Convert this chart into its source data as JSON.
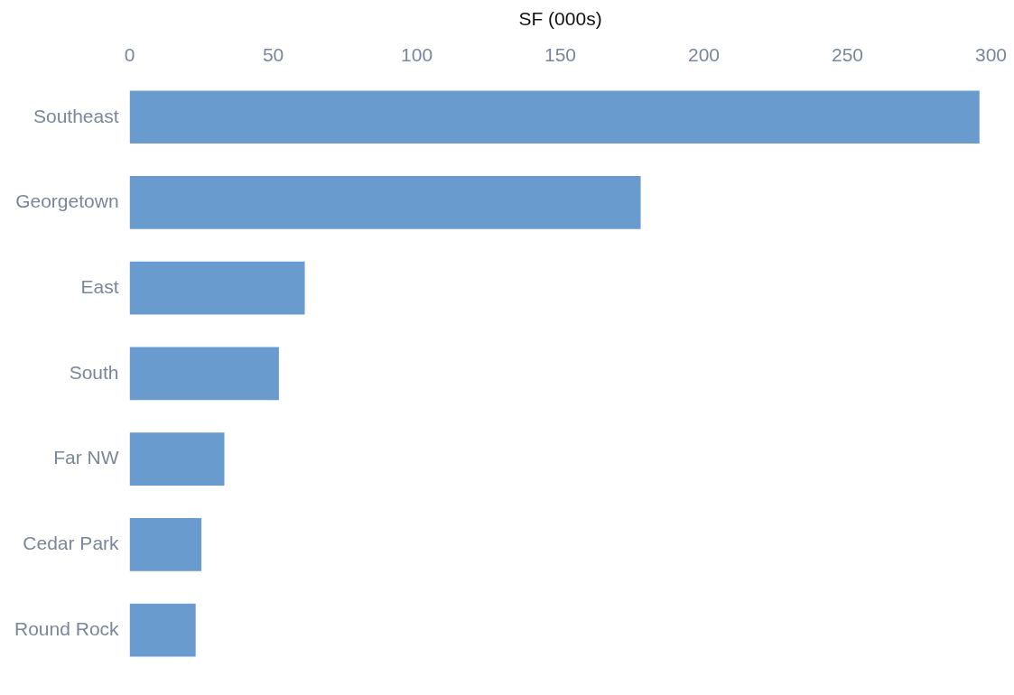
{
  "chart_data": {
    "type": "bar",
    "orientation": "horizontal",
    "xlabel": "SF (000s)",
    "categories": [
      "Southeast",
      "Georgetown",
      "East",
      "South",
      "Far NW",
      "Cedar Park",
      "Round Rock"
    ],
    "values": [
      296,
      178,
      61,
      52,
      33,
      25,
      23
    ],
    "color": "#6a9bcf",
    "xlim": [
      0,
      300
    ],
    "xticks": [
      0,
      50,
      100,
      150,
      200,
      250,
      300
    ],
    "grid": false,
    "legend": false
  }
}
